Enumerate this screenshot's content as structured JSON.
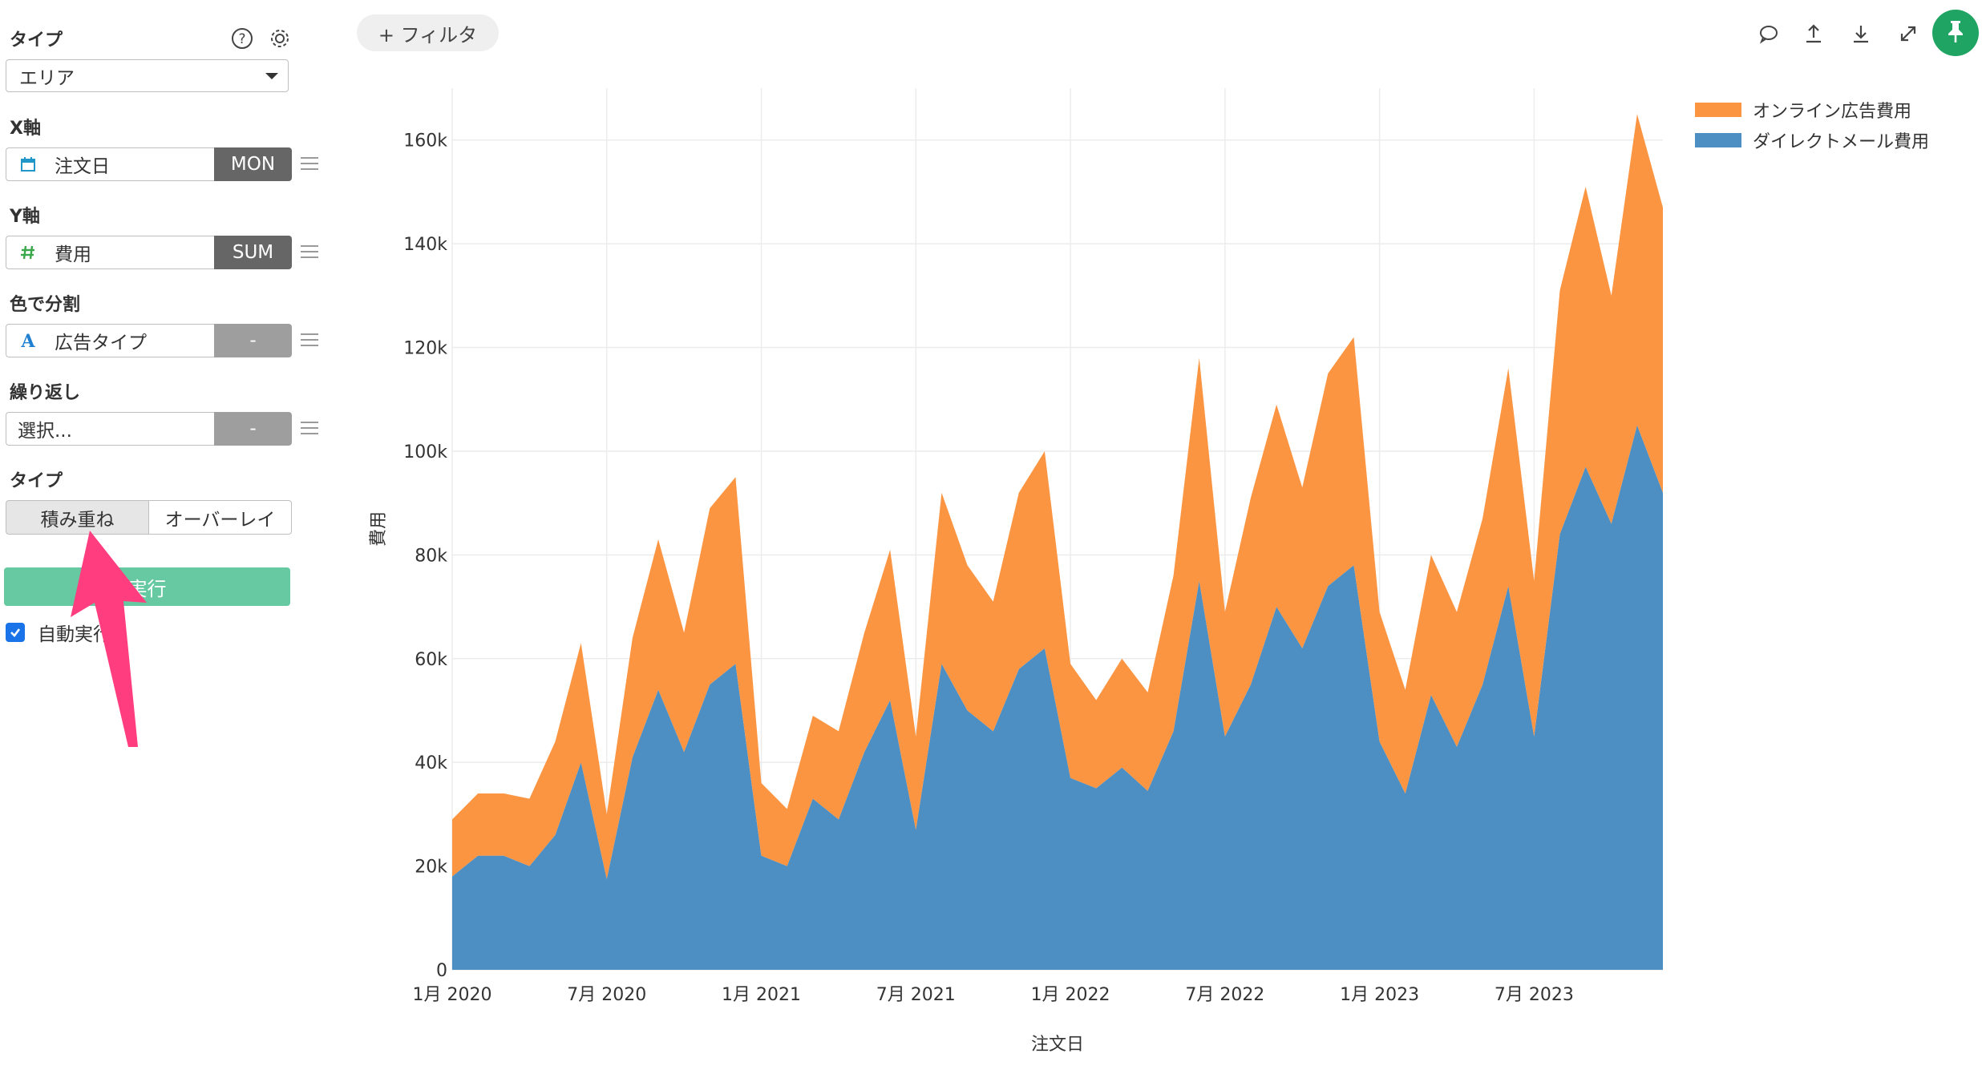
{
  "sidebar": {
    "type_label": "タイプ",
    "type_value": "エリア",
    "x_label": "X軸",
    "x_field": "注文日",
    "x_agg": "MON",
    "y_label": "Y軸",
    "y_field": "費用",
    "y_agg": "SUM",
    "color_label": "色で分割",
    "color_field": "広告タイプ",
    "color_agg": "-",
    "repeat_label": "繰り返し",
    "repeat_placeholder": "選択...",
    "repeat_agg": "-",
    "mode_label": "タイプ",
    "mode_stacked": "積み重ね",
    "mode_overlay": "オーバーレイ",
    "run_button": "実行",
    "auto_run_label": "自動実行",
    "auto_run_checked": true
  },
  "toolbar": {
    "filter_label": "+ フィルタ",
    "icons": [
      "comment-icon",
      "upload-icon",
      "download-icon",
      "expand-icon",
      "pin-icon"
    ],
    "pin_color": "#1fa463"
  },
  "annotation": {
    "arrow_color": "#ff3d7f"
  },
  "chart_data": {
    "type": "area",
    "stacked": true,
    "xlabel": "注文日",
    "ylabel": "費用",
    "ylim": [
      0,
      170000
    ],
    "yticks": [
      0,
      20000,
      40000,
      60000,
      80000,
      100000,
      120000,
      140000,
      160000
    ],
    "ytick_labels": [
      "0",
      "20k",
      "40k",
      "60k",
      "80k",
      "100k",
      "120k",
      "140k",
      "160k"
    ],
    "xtick_labels": [
      "1月 2020",
      "7月 2020",
      "1月 2021",
      "7月 2021",
      "1月 2022",
      "7月 2022",
      "1月 2023",
      "7月 2023"
    ],
    "xtick_index": [
      0,
      6,
      12,
      18,
      24,
      30,
      36,
      42
    ],
    "legend_position": "top-right",
    "grid": true,
    "categories": [
      "2020-01",
      "2020-02",
      "2020-03",
      "2020-04",
      "2020-05",
      "2020-06",
      "2020-07",
      "2020-08",
      "2020-09",
      "2020-10",
      "2020-11",
      "2020-12",
      "2021-01",
      "2021-02",
      "2021-03",
      "2021-04",
      "2021-05",
      "2021-06",
      "2021-07",
      "2021-08",
      "2021-09",
      "2021-10",
      "2021-11",
      "2021-12",
      "2022-01",
      "2022-02",
      "2022-03",
      "2022-04",
      "2022-05",
      "2022-06",
      "2022-07",
      "2022-08",
      "2022-09",
      "2022-10",
      "2022-11",
      "2022-12",
      "2023-01",
      "2023-02",
      "2023-03",
      "2023-04",
      "2023-05",
      "2023-06",
      "2023-07",
      "2023-08",
      "2023-09",
      "2023-10",
      "2023-11",
      "2023-12"
    ],
    "series": [
      {
        "name": "ダイレクトメール費用",
        "color": "#4e8fc3",
        "values": [
          18000,
          22000,
          22000,
          20000,
          26000,
          40000,
          17500,
          41000,
          54000,
          42000,
          55000,
          59000,
          22000,
          20000,
          33000,
          29000,
          42000,
          52000,
          27000,
          59000,
          50000,
          46000,
          58000,
          62000,
          37000,
          35000,
          39000,
          34500,
          46000,
          75000,
          45000,
          55000,
          70000,
          62000,
          74000,
          78000,
          44000,
          34000,
          53000,
          43000,
          55000,
          74000,
          45000,
          84000,
          97000,
          86000,
          105000,
          92000
        ]
      },
      {
        "name": "オンライン広告費用",
        "color": "#fb9542",
        "values": [
          11000,
          12000,
          12000,
          13000,
          18000,
          23000,
          12500,
          23000,
          29000,
          23000,
          34000,
          36000,
          14000,
          11000,
          16000,
          17000,
          23000,
          29000,
          18000,
          33000,
          28000,
          25000,
          34000,
          38000,
          22000,
          17000,
          21000,
          19000,
          30000,
          43000,
          24000,
          36000,
          39000,
          31000,
          41000,
          44000,
          25000,
          20000,
          27000,
          26000,
          32000,
          42000,
          30000,
          47000,
          54000,
          44000,
          60000,
          55000
        ]
      }
    ]
  }
}
